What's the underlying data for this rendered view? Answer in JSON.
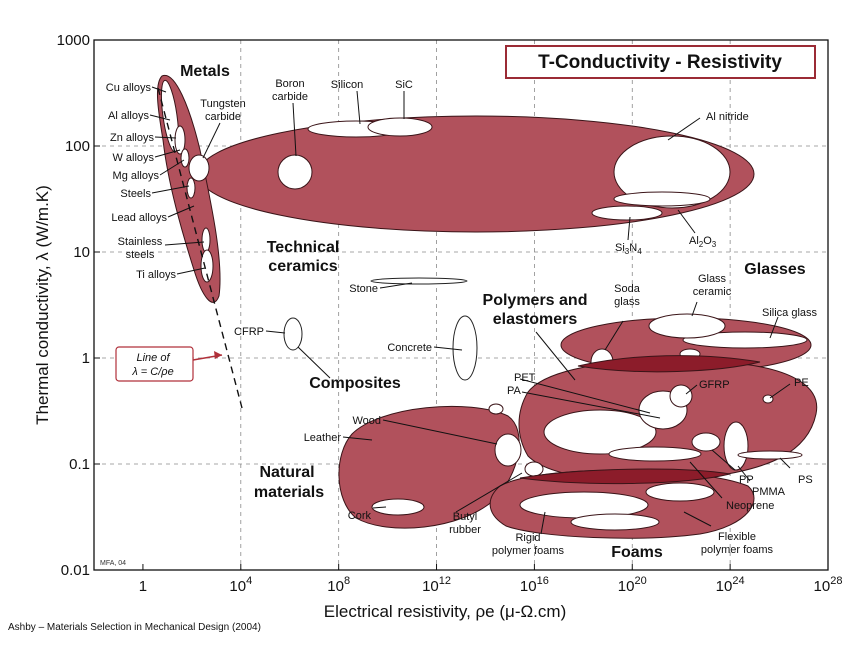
{
  "chart_data": {
    "type": "scatter",
    "title": "T-Conductivity - Resistivity",
    "xlabel": "Electrical resistivity, ρe (μ-Ω.cm)",
    "ylabel": "Thermal conductivity, λ (W/m.K)",
    "x_scale": "log",
    "y_scale": "log",
    "xlim": [
      0.01,
      1e+28
    ],
    "ylim": [
      0.01,
      1000
    ],
    "x_ticks": [
      {
        "label": "1",
        "value": 1
      },
      {
        "label": "10",
        "sup": "4",
        "value": 10000
      },
      {
        "label": "10",
        "sup": "8",
        "value": 100000000
      },
      {
        "label": "10",
        "sup": "12",
        "value": 1000000000000.0
      },
      {
        "label": "10",
        "sup": "16",
        "value": 1e+16
      },
      {
        "label": "10",
        "sup": "20",
        "value": 1e+20
      },
      {
        "label": "10",
        "sup": "24",
        "value": 1e+24
      },
      {
        "label": "10",
        "sup": "28",
        "value": 1e+28
      }
    ],
    "y_ticks": [
      {
        "label": "1000",
        "value": 1000
      },
      {
        "label": "100",
        "value": 100
      },
      {
        "label": "10",
        "value": 10
      },
      {
        "label": "1",
        "value": 1
      },
      {
        "label": "0.1",
        "value": 0.1
      },
      {
        "label": "0.01",
        "value": 0.01
      }
    ],
    "grid": true,
    "families": [
      {
        "name": "Metals",
        "resistivity": [
          1.5,
          300
        ],
        "conductivity": [
          5,
          400
        ]
      },
      {
        "name": "Technical ceramics",
        "resistivity": [
          10,
          3e+24
        ],
        "conductivity": [
          20,
          300
        ]
      },
      {
        "name": "Glasses",
        "resistivity": [
          1e+17,
          1e+27
        ],
        "conductivity": [
          0.8,
          2
        ]
      },
      {
        "name": "Polymers and elastomers",
        "resistivity": [
          1000000000000000.0,
          1e+26
        ],
        "conductivity": [
          0.15,
          0.8
        ]
      },
      {
        "name": "Natural materials",
        "resistivity": [
          100000000.0,
          1e+16
        ],
        "conductivity": [
          0.04,
          0.4
        ]
      },
      {
        "name": "Foams",
        "resistivity": [
          100000000000000.0,
          1e+24
        ],
        "conductivity": [
          0.02,
          0.06
        ]
      },
      {
        "name": "Composites",
        "resistivity": [
          1000000000.0,
          10000000000.0
        ],
        "conductivity": [
          1.2,
          1.8
        ]
      }
    ],
    "materials": [
      "Cu alloys",
      "Al alloys",
      "Zn alloys",
      "W alloys",
      "Mg alloys",
      "Steels",
      "Lead alloys",
      "Stainless steels",
      "Ti alloys",
      "Tungsten carbide",
      "Boron carbide",
      "Silicon",
      "SiC",
      "Al nitride",
      "Si3N4",
      "Al2O3",
      "Stone",
      "Concrete",
      "CFRP",
      "Soda glass",
      "Glass ceramic",
      "Silica glass",
      "PET",
      "PA",
      "GFRP",
      "PE",
      "PP",
      "PMMA",
      "Neoprene",
      "PS",
      "Wood",
      "Leather",
      "Cork",
      "Butyl rubber",
      "Rigid polymer foams",
      "Flexible polymer foams"
    ],
    "guide_line": {
      "text": "Line of",
      "relation": "λ = C/ρe"
    }
  },
  "labels": {
    "metals": "Metals",
    "tech_ceramics_1": "Technical",
    "tech_ceramics_2": "ceramics",
    "glasses": "Glasses",
    "polymers_1": "Polymers and",
    "polymers_2": "elastomers",
    "composites": "Composites",
    "natural_1": "Natural",
    "natural_2": "materials",
    "foams": "Foams",
    "cu": "Cu alloys",
    "al": "Al alloys",
    "zn": "Zn alloys",
    "w": "W alloys",
    "mg": "Mg alloys",
    "steels": "Steels",
    "lead": "Lead alloys",
    "stainless_1": "Stainless",
    "stainless_2": "steels",
    "ti": "Ti alloys",
    "tungsten_1": "Tungsten",
    "tungsten_2": "carbide",
    "boron_1": "Boron",
    "boron_2": "carbide",
    "silicon": "Silicon",
    "sic": "SiC",
    "alnitride": "Al nitride",
    "si3n4_a": "Si",
    "si3n4_b": "3",
    "si3n4_c": "N",
    "si3n4_d": "4",
    "al2o3_a": "Al",
    "al2o3_b": "2",
    "al2o3_c": "O",
    "al2o3_d": "3",
    "stone": "Stone",
    "concrete": "Concrete",
    "cfrp": "CFRP",
    "soda_1": "Soda",
    "soda_2": "glass",
    "glassceramic_1": "Glass",
    "glassceramic_2": "ceramic",
    "silica": "Silica glass",
    "pet": "PET",
    "pa": "PA",
    "gfrp": "GFRP",
    "pe": "PE",
    "pp": "PP",
    "pmma": "PMMA",
    "neoprene": "Neoprene",
    "ps": "PS",
    "wood": "Wood",
    "leather": "Leather",
    "cork": "Cork",
    "butyl_1": "Butyl",
    "butyl_2": "rubber",
    "rigid_1": "Rigid",
    "rigid_2": "polymer foams",
    "flexible_1": "Flexible",
    "flexible_2": "polymer foams",
    "line_of": "Line of",
    "line_eq": "λ = C/ρe",
    "mfa": "MFA, 04",
    "source": "Ashby – Materials Selection in Mechanical Design (2004)"
  },
  "colors": {
    "envelope": "#b1515c",
    "envelope_edge": "#3a1418",
    "envelope_dark": "#8c1c2a",
    "title_border": "#9b2b35",
    "box_border": "#b0303a",
    "grid": "#8a8a8a",
    "background": "#ffffff"
  }
}
